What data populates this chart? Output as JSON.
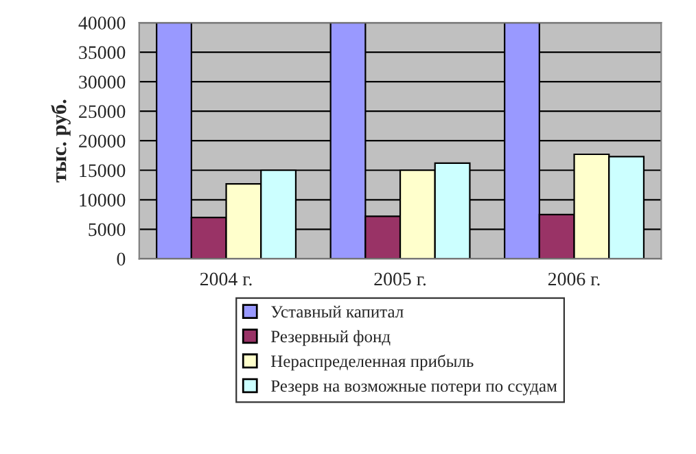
{
  "chart_data": {
    "type": "bar",
    "ylabel": "тыс. руб.",
    "categories": [
      "2004 г.",
      "2005 г.",
      "2006 г."
    ],
    "series": [
      {
        "name": "Уставный капитал",
        "color": "#9999ff",
        "values": [
          40000,
          40000,
          40000
        ]
      },
      {
        "name": "Резервный фонд",
        "color": "#993366",
        "values": [
          7000,
          7200,
          7500
        ]
      },
      {
        "name": "Нераспределенная прибыль",
        "color": "#ffffcc",
        "values": [
          12700,
          15000,
          17700
        ]
      },
      {
        "name": "Резерв на возможные потери по ссудам",
        "color": "#ccffff",
        "values": [
          15000,
          16200,
          17300
        ]
      }
    ],
    "ylim": [
      0,
      40000
    ],
    "yticks": [
      0,
      5000,
      10000,
      15000,
      20000,
      25000,
      30000,
      35000,
      40000
    ],
    "grid": "y",
    "legend": "bottom"
  }
}
